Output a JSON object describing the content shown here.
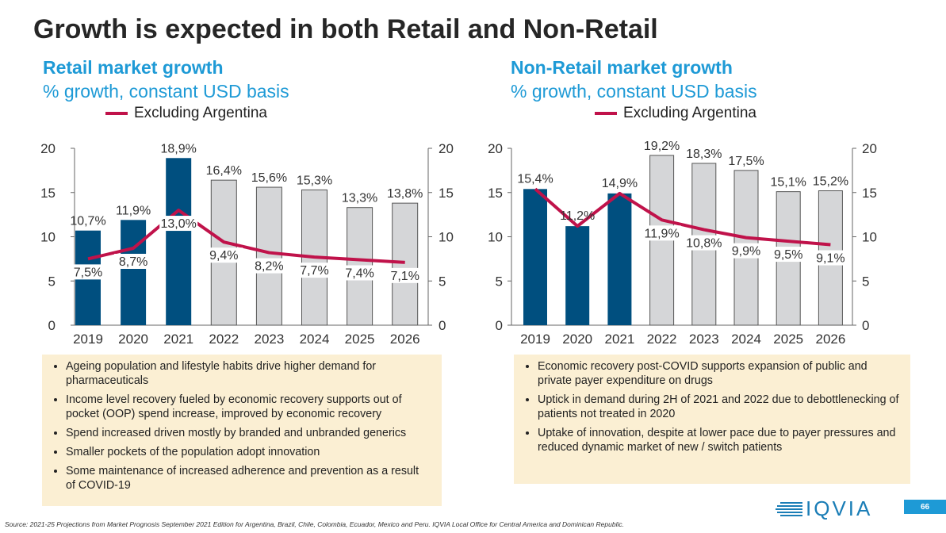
{
  "title": "Growth is expected in both Retail and Non-Retail",
  "colors": {
    "historical_bar": "#004f7f",
    "forecast_bar": "#d5d6d8",
    "line": "#c0124a",
    "heading": "#1e9ad6",
    "box": "#fbefd3"
  },
  "left": {
    "heading": "Retail market growth",
    "subheading": "% growth, constant USD basis",
    "bullets": [
      "Ageing population and lifestyle habits drive higher demand for pharmaceuticals",
      "Income level recovery fueled by economic recovery supports out of pocket (OOP) spend increase, improved by economic recovery",
      "Spend increased driven mostly by branded and unbranded generics",
      "Smaller pockets of the population adopt innovation",
      "Some maintenance of increased adherence and prevention as a result of COVID-19"
    ]
  },
  "right": {
    "heading": "Non-Retail market growth",
    "subheading": "% growth, constant USD basis",
    "bullets": [
      "Economic recovery post-COVID supports expansion of public and private payer expenditure on drugs",
      "Uptick in demand during 2H of 2021 and 2022 due to debottlenecking of patients not treated in 2020",
      "Uptake of innovation, despite at lower pace due to payer pressures and reduced dynamic market of new / switch patients"
    ]
  },
  "chart_data": [
    {
      "type": "bar+line",
      "title": "Retail market growth",
      "categories": [
        "2019",
        "2020",
        "2021",
        "2022",
        "2023",
        "2024",
        "2025",
        "2026"
      ],
      "series": [
        {
          "type": "bar",
          "values": [
            10.7,
            11.9,
            18.9,
            16.4,
            15.6,
            15.3,
            13.3,
            13.8
          ],
          "labels": [
            "10,7%",
            "11,9%",
            "18,9%",
            "16,4%",
            "15,6%",
            "15,3%",
            "13,3%",
            "13,8%"
          ]
        },
        {
          "type": "line",
          "name": "Excluding Argentina",
          "values": [
            7.5,
            8.7,
            13.0,
            9.4,
            8.2,
            7.7,
            7.4,
            7.1
          ],
          "labels": [
            "7,5%",
            "8,7%",
            "13,0%",
            "9,4%",
            "8,2%",
            "7,7%",
            "7,4%",
            "7,1%"
          ]
        }
      ],
      "historical_years": [
        "2019",
        "2020",
        "2021"
      ],
      "yticks": [
        "0",
        "5",
        "10",
        "15",
        "20"
      ],
      "ylim": [
        0,
        20
      ],
      "legend": "top"
    },
    {
      "type": "bar+line",
      "title": "Non-Retail market growth",
      "categories": [
        "2019",
        "2020",
        "2021",
        "2022",
        "2023",
        "2024",
        "2025",
        "2026"
      ],
      "series": [
        {
          "type": "bar",
          "values": [
            15.4,
            11.2,
            14.9,
            19.2,
            18.3,
            17.5,
            15.1,
            15.2
          ],
          "labels": [
            "15,4%",
            "11,2%",
            "14,9%",
            "19,2%",
            "18,3%",
            "17,5%",
            "15,1%",
            "15,2%"
          ]
        },
        {
          "type": "line",
          "name": "Excluding Argentina",
          "values": [
            15.4,
            11.2,
            14.9,
            11.9,
            10.8,
            9.9,
            9.5,
            9.1
          ],
          "labels": [
            "15,4%",
            "11,2%",
            "14,9%",
            "11,9%",
            "10,8%",
            "9,9%",
            "9,5%",
            "9,1%"
          ]
        }
      ],
      "historical_years": [
        "2019",
        "2020",
        "2021"
      ],
      "yticks": [
        "0",
        "5",
        "10",
        "15",
        "20"
      ],
      "ylim": [
        0,
        20
      ],
      "legend": "top"
    }
  ],
  "footer": {
    "source": "Source: 2021-25 Projections from Market Prognosis September 2021 Edition for Argentina, Brazil, Chile, Colombia, Ecuador, Mexico and Peru. IQVIA Local Office for Central America and Dominican Republic.",
    "logo": "IQVIA",
    "page_number": "66"
  }
}
